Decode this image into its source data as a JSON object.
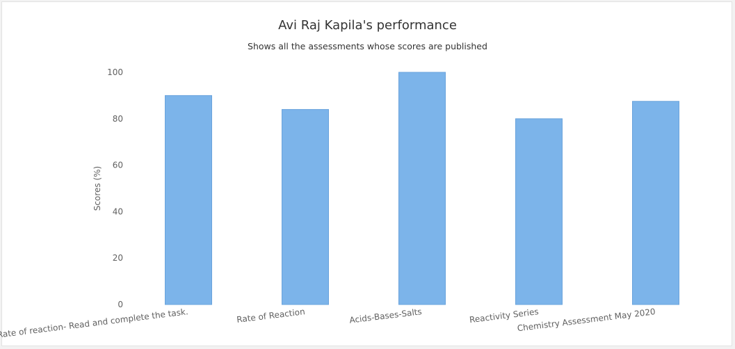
{
  "chart_data": {
    "type": "bar",
    "title": "Avi Raj Kapila's performance",
    "subtitle": "Shows all the assessments whose scores are published",
    "ylabel": "Scores (%)",
    "xlabel": "",
    "categories": [
      "Rate of reaction- Read and complete the task.",
      "Rate of Reaction",
      "Acids-Bases-Salts",
      "Reactivity Series",
      "Chemistry Assessment May 2020"
    ],
    "values": [
      90,
      84,
      100,
      80,
      87.5
    ],
    "ylim": [
      0,
      100
    ],
    "yticks": [
      0,
      20,
      40,
      60,
      80,
      100
    ],
    "grid": false,
    "legend": "none",
    "bar_color": "#7cb4ea"
  }
}
